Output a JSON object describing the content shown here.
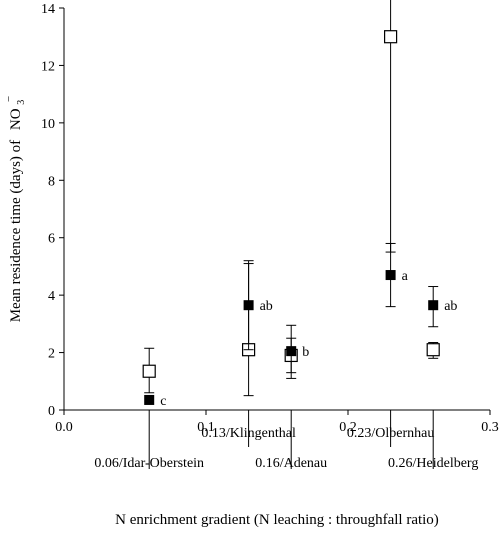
{
  "chart_data": {
    "type": "scatter",
    "title": "",
    "xlabel": "N enrichment gradient (N leaching : throughfall ratio)",
    "ylabel_text": "Mean residence time (days) of",
    "ylabel_chem": "NO",
    "ylabel_sub": "3",
    "ylabel_sup": "−",
    "xlim": [
      0.0,
      0.3
    ],
    "ylim": [
      0,
      14
    ],
    "x_ticks": [
      {
        "value": 0.0,
        "label": "0.0"
      },
      {
        "value": 0.1,
        "label": "0.1"
      },
      {
        "value": 0.2,
        "label": "0.2"
      },
      {
        "value": 0.3,
        "label": "0.3"
      }
    ],
    "y_ticks": [
      {
        "value": 0,
        "label": "0"
      },
      {
        "value": 2,
        "label": "2"
      },
      {
        "value": 4,
        "label": "4"
      },
      {
        "value": 6,
        "label": "6"
      },
      {
        "value": 8,
        "label": "8"
      },
      {
        "value": 10,
        "label": "10"
      },
      {
        "value": 12,
        "label": "12"
      },
      {
        "value": 14,
        "label": "14"
      }
    ],
    "grid": false,
    "legend": "none",
    "sites": [
      {
        "x": 0.06,
        "label": "0.06/Idar-Oberstein",
        "row": 2
      },
      {
        "x": 0.13,
        "label": "0.13/Klingenthal",
        "row": 1
      },
      {
        "x": 0.16,
        "label": "0.16/Adenau",
        "row": 2
      },
      {
        "x": 0.23,
        "label": "0.23/Olbernhau",
        "row": 1
      },
      {
        "x": 0.26,
        "label": "0.26/Heidelberg",
        "row": 2
      }
    ],
    "series": [
      {
        "marker": "open-square",
        "color": "#000000",
        "points": [
          {
            "x": 0.06,
            "y": 1.35,
            "low": 0.6,
            "high": 2.15
          },
          {
            "x": 0.13,
            "y": 2.1,
            "low": 0.5,
            "high": 5.2
          },
          {
            "x": 0.16,
            "y": 1.9,
            "low": 1.3,
            "high": 2.5
          },
          {
            "x": 0.23,
            "y": 13.0,
            "low": 5.5,
            "high": 14.3
          },
          {
            "x": 0.26,
            "y": 2.1,
            "low": 1.8,
            "high": 2.35
          }
        ]
      },
      {
        "marker": "filled-square",
        "color": "#000000",
        "points": [
          {
            "x": 0.06,
            "y": 0.35,
            "low": null,
            "high": null,
            "letter": "c"
          },
          {
            "x": 0.13,
            "y": 3.65,
            "low": 2.1,
            "high": 5.1,
            "letter": "ab"
          },
          {
            "x": 0.16,
            "y": 2.05,
            "low": 1.1,
            "high": 2.95,
            "letter": "b"
          },
          {
            "x": 0.23,
            "y": 4.7,
            "low": 3.6,
            "high": 5.8,
            "letter": "a"
          },
          {
            "x": 0.26,
            "y": 3.65,
            "low": 2.9,
            "high": 4.3,
            "letter": "ab"
          }
        ]
      }
    ]
  }
}
